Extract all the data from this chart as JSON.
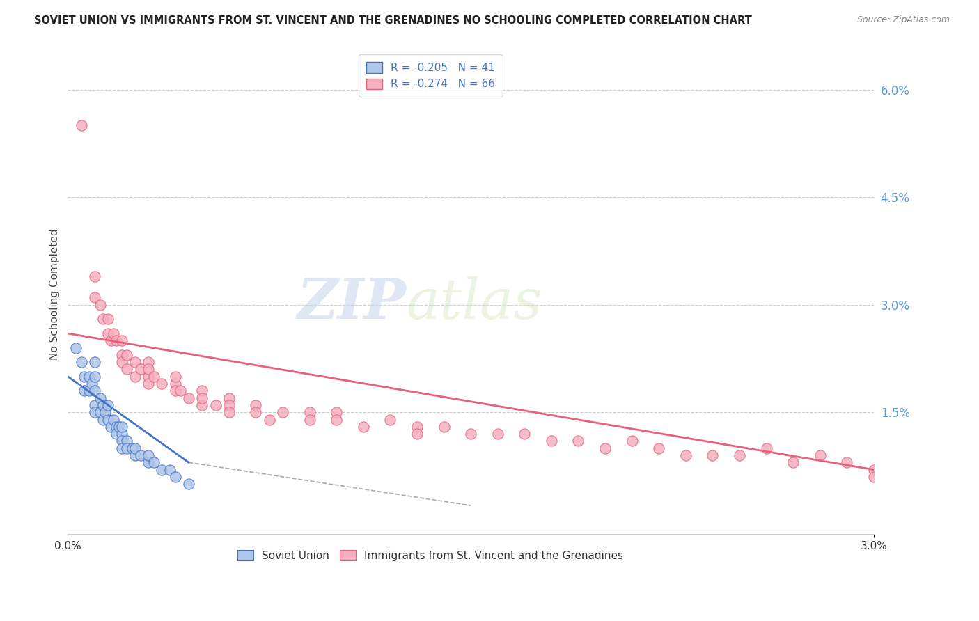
{
  "title": "SOVIET UNION VS IMMIGRANTS FROM ST. VINCENT AND THE GRENADINES NO SCHOOLING COMPLETED CORRELATION CHART",
  "source": "Source: ZipAtlas.com",
  "ylabel": "No Schooling Completed",
  "legend_label1": "Soviet Union",
  "legend_label2": "Immigrants from St. Vincent and the Grenadines",
  "r1": -0.205,
  "n1": 41,
  "r2": -0.274,
  "n2": 66,
  "color1": "#aec6e8",
  "color2": "#f4afc0",
  "line_color1": "#4472c4",
  "line_color2": "#e8607a",
  "xlim": [
    0.0,
    0.03
  ],
  "ylim": [
    -0.002,
    0.065
  ],
  "xtick_pos": [
    0.0,
    0.03
  ],
  "xtick_labels": [
    "0.0%",
    "3.0%"
  ],
  "ytick_labels_right": [
    "1.5%",
    "3.0%",
    "4.5%",
    "6.0%"
  ],
  "yticks_right": [
    0.015,
    0.03,
    0.045,
    0.06
  ],
  "background_color": "#ffffff",
  "watermark_zip": "ZIP",
  "watermark_atlas": "atlas",
  "scatter_data1": [
    [
      0.0003,
      0.024
    ],
    [
      0.0005,
      0.022
    ],
    [
      0.0006,
      0.02
    ],
    [
      0.0006,
      0.018
    ],
    [
      0.0008,
      0.02
    ],
    [
      0.0008,
      0.018
    ],
    [
      0.0009,
      0.019
    ],
    [
      0.001,
      0.022
    ],
    [
      0.001,
      0.02
    ],
    [
      0.001,
      0.018
    ],
    [
      0.001,
      0.016
    ],
    [
      0.001,
      0.015
    ],
    [
      0.0012,
      0.017
    ],
    [
      0.0012,
      0.015
    ],
    [
      0.0013,
      0.016
    ],
    [
      0.0013,
      0.014
    ],
    [
      0.0014,
      0.015
    ],
    [
      0.0015,
      0.016
    ],
    [
      0.0015,
      0.014
    ],
    [
      0.0016,
      0.013
    ],
    [
      0.0017,
      0.014
    ],
    [
      0.0018,
      0.013
    ],
    [
      0.0018,
      0.012
    ],
    [
      0.0019,
      0.013
    ],
    [
      0.002,
      0.012
    ],
    [
      0.002,
      0.011
    ],
    [
      0.002,
      0.013
    ],
    [
      0.002,
      0.01
    ],
    [
      0.0022,
      0.011
    ],
    [
      0.0022,
      0.01
    ],
    [
      0.0024,
      0.01
    ],
    [
      0.0025,
      0.009
    ],
    [
      0.0025,
      0.01
    ],
    [
      0.0027,
      0.009
    ],
    [
      0.003,
      0.008
    ],
    [
      0.003,
      0.009
    ],
    [
      0.0032,
      0.008
    ],
    [
      0.0035,
      0.007
    ],
    [
      0.0038,
      0.007
    ],
    [
      0.004,
      0.006
    ],
    [
      0.0045,
      0.005
    ]
  ],
  "scatter_data2": [
    [
      0.0005,
      0.055
    ],
    [
      0.001,
      0.034
    ],
    [
      0.001,
      0.031
    ],
    [
      0.0012,
      0.03
    ],
    [
      0.0013,
      0.028
    ],
    [
      0.0015,
      0.028
    ],
    [
      0.0015,
      0.026
    ],
    [
      0.0016,
      0.025
    ],
    [
      0.0017,
      0.026
    ],
    [
      0.0018,
      0.025
    ],
    [
      0.002,
      0.025
    ],
    [
      0.002,
      0.023
    ],
    [
      0.002,
      0.022
    ],
    [
      0.0022,
      0.023
    ],
    [
      0.0022,
      0.021
    ],
    [
      0.0025,
      0.022
    ],
    [
      0.0025,
      0.02
    ],
    [
      0.0027,
      0.021
    ],
    [
      0.003,
      0.022
    ],
    [
      0.003,
      0.02
    ],
    [
      0.003,
      0.021
    ],
    [
      0.003,
      0.019
    ],
    [
      0.0032,
      0.02
    ],
    [
      0.0035,
      0.019
    ],
    [
      0.004,
      0.019
    ],
    [
      0.004,
      0.018
    ],
    [
      0.004,
      0.02
    ],
    [
      0.0042,
      0.018
    ],
    [
      0.0045,
      0.017
    ],
    [
      0.005,
      0.018
    ],
    [
      0.005,
      0.016
    ],
    [
      0.005,
      0.017
    ],
    [
      0.0055,
      0.016
    ],
    [
      0.006,
      0.017
    ],
    [
      0.006,
      0.016
    ],
    [
      0.006,
      0.015
    ],
    [
      0.007,
      0.016
    ],
    [
      0.007,
      0.015
    ],
    [
      0.0075,
      0.014
    ],
    [
      0.008,
      0.015
    ],
    [
      0.009,
      0.015
    ],
    [
      0.009,
      0.014
    ],
    [
      0.01,
      0.015
    ],
    [
      0.01,
      0.014
    ],
    [
      0.011,
      0.013
    ],
    [
      0.012,
      0.014
    ],
    [
      0.013,
      0.013
    ],
    [
      0.013,
      0.012
    ],
    [
      0.014,
      0.013
    ],
    [
      0.015,
      0.012
    ],
    [
      0.016,
      0.012
    ],
    [
      0.017,
      0.012
    ],
    [
      0.018,
      0.011
    ],
    [
      0.019,
      0.011
    ],
    [
      0.02,
      0.01
    ],
    [
      0.021,
      0.011
    ],
    [
      0.022,
      0.01
    ],
    [
      0.023,
      0.009
    ],
    [
      0.024,
      0.009
    ],
    [
      0.025,
      0.009
    ],
    [
      0.026,
      0.01
    ],
    [
      0.027,
      0.008
    ],
    [
      0.028,
      0.009
    ],
    [
      0.029,
      0.008
    ],
    [
      0.03,
      0.007
    ],
    [
      0.03,
      0.006
    ]
  ],
  "trend_line1_x": [
    0.0,
    0.0045
  ],
  "trend_line1_y_start": 0.02,
  "trend_line1_y_end": 0.008,
  "trend_line2_x": [
    0.0,
    0.03
  ],
  "trend_line2_y_start": 0.026,
  "trend_line2_y_end": 0.007,
  "dash_line_x": [
    0.0045,
    0.015
  ],
  "dash_line_y_start": 0.008,
  "dash_line_y_end": 0.002
}
